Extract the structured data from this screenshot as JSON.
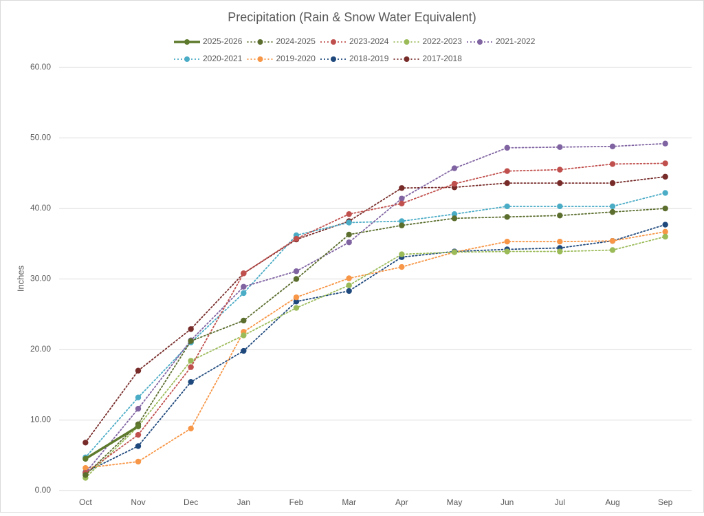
{
  "chart_data": {
    "type": "line",
    "title": "Precipitation (Rain & Snow Water Equivalent)",
    "y_label": "Inches",
    "categories": [
      "Oct",
      "Nov",
      "Dec",
      "Jan",
      "Feb",
      "Mar",
      "Apr",
      "May",
      "Jun",
      "Jul",
      "Aug",
      "Sep"
    ],
    "ylim": [
      0,
      60
    ],
    "yticks": [
      {
        "value": 0,
        "label": "0.00"
      },
      {
        "value": 10,
        "label": "10.00"
      },
      {
        "value": 20,
        "label": "20.00"
      },
      {
        "value": 30,
        "label": "30.00"
      },
      {
        "value": 40,
        "label": "40.00"
      },
      {
        "value": 50,
        "label": "50.00"
      },
      {
        "value": 60,
        "label": "60.00"
      }
    ],
    "grid": true,
    "legend": "top",
    "series": [
      {
        "name": "2025-2026",
        "color": "#5e7a2c",
        "line_style": "solid",
        "values": [
          4.5,
          9.1,
          null,
          null,
          null,
          null,
          null,
          null,
          null,
          null,
          null,
          null
        ]
      },
      {
        "name": "2024-2025",
        "color": "#5b6e2e",
        "line_style": "dotted",
        "values": [
          2.2,
          9.4,
          21.2,
          24.1,
          30.0,
          36.3,
          37.6,
          38.6,
          38.8,
          39.0,
          39.5,
          40.0
        ]
      },
      {
        "name": "2023-2024",
        "color": "#c0504d",
        "line_style": "dotted",
        "values": [
          2.5,
          7.9,
          17.5,
          30.8,
          35.7,
          39.2,
          40.7,
          43.5,
          45.3,
          45.5,
          46.3,
          46.4
        ]
      },
      {
        "name": "2022-2023",
        "color": "#9bbb59",
        "line_style": "dotted",
        "values": [
          1.8,
          9.1,
          18.4,
          22.0,
          25.9,
          29.1,
          33.5,
          33.8,
          33.9,
          33.9,
          34.1,
          36.0
        ]
      },
      {
        "name": "2021-2022",
        "color": "#8064a2",
        "line_style": "dotted",
        "values": [
          2.5,
          11.6,
          21.3,
          28.9,
          31.1,
          35.2,
          41.4,
          45.7,
          48.6,
          48.7,
          48.8,
          49.2
        ]
      },
      {
        "name": "2020-2021",
        "color": "#4bacc6",
        "line_style": "dotted",
        "values": [
          4.7,
          13.2,
          21.0,
          28.0,
          36.2,
          38.0,
          38.2,
          39.2,
          40.3,
          40.3,
          40.3,
          42.2
        ]
      },
      {
        "name": "2019-2020",
        "color": "#f79646",
        "line_style": "dotted",
        "values": [
          3.2,
          4.1,
          8.8,
          22.5,
          27.4,
          30.1,
          31.7,
          33.8,
          35.3,
          35.3,
          35.4,
          36.7
        ]
      },
      {
        "name": "2018-2019",
        "color": "#1f497d",
        "line_style": "dotted",
        "values": [
          2.6,
          6.3,
          15.4,
          19.8,
          26.8,
          28.3,
          33.1,
          33.9,
          34.2,
          34.4,
          35.4,
          37.7
        ]
      },
      {
        "name": "2017-2018",
        "color": "#772c2a",
        "line_style": "dotted",
        "values": [
          6.8,
          17.0,
          22.9,
          30.8,
          35.6,
          38.2,
          42.9,
          43.0,
          43.6,
          43.6,
          43.6,
          44.5
        ]
      }
    ]
  }
}
